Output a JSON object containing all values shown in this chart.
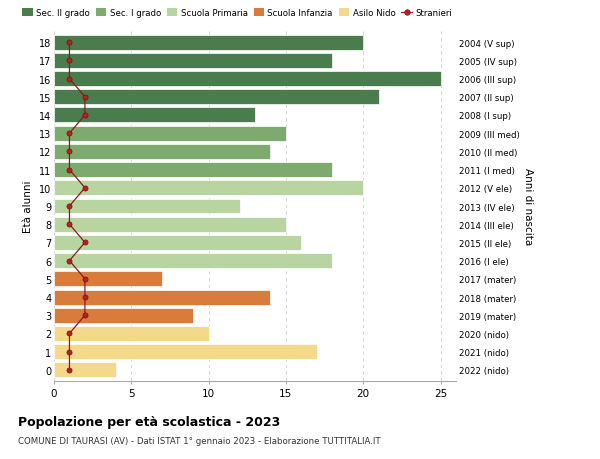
{
  "ages": [
    18,
    17,
    16,
    15,
    14,
    13,
    12,
    11,
    10,
    9,
    8,
    7,
    6,
    5,
    4,
    3,
    2,
    1,
    0
  ],
  "right_labels": [
    "2004 (V sup)",
    "2005 (IV sup)",
    "2006 (III sup)",
    "2007 (II sup)",
    "2008 (I sup)",
    "2009 (III med)",
    "2010 (II med)",
    "2011 (I med)",
    "2012 (V ele)",
    "2013 (IV ele)",
    "2014 (III ele)",
    "2015 (II ele)",
    "2016 (I ele)",
    "2017 (mater)",
    "2018 (mater)",
    "2019 (mater)",
    "2020 (nido)",
    "2021 (nido)",
    "2022 (nido)"
  ],
  "bar_values": [
    20,
    18,
    25,
    21,
    13,
    15,
    14,
    18,
    20,
    12,
    15,
    16,
    18,
    7,
    14,
    9,
    10,
    17,
    4
  ],
  "bar_colors": [
    "#4a7c4e",
    "#4a7c4e",
    "#4a7c4e",
    "#4a7c4e",
    "#4a7c4e",
    "#7daa6d",
    "#7daa6d",
    "#7daa6d",
    "#b8d4a0",
    "#b8d4a0",
    "#b8d4a0",
    "#b8d4a0",
    "#b8d4a0",
    "#d97b3a",
    "#d97b3a",
    "#d97b3a",
    "#f5d98a",
    "#f5d98a",
    "#f5d98a"
  ],
  "stranieri_values": [
    1,
    1,
    1,
    2,
    2,
    1,
    1,
    1,
    2,
    1,
    1,
    2,
    1,
    2,
    2,
    2,
    1,
    1,
    1
  ],
  "legend_labels": [
    "Sec. II grado",
    "Sec. I grado",
    "Scuola Primaria",
    "Scuola Infanzia",
    "Asilo Nido",
    "Stranieri"
  ],
  "legend_colors": [
    "#4a7c4e",
    "#7daa6d",
    "#b8d4a0",
    "#d97b3a",
    "#f5d98a",
    "#b22222"
  ],
  "ylabel_left": "Età alunni",
  "ylabel_right": "Anni di nascita",
  "title": "Popolazione per età scolastica - 2023",
  "subtitle": "COMUNE DI TAURASI (AV) - Dati ISTAT 1° gennaio 2023 - Elaborazione TUTTITALIA.IT",
  "xlim": [
    0,
    26
  ],
  "xticks": [
    0,
    5,
    10,
    15,
    20,
    25
  ],
  "bg_color": "#ffffff",
  "grid_color": "#cccccc"
}
